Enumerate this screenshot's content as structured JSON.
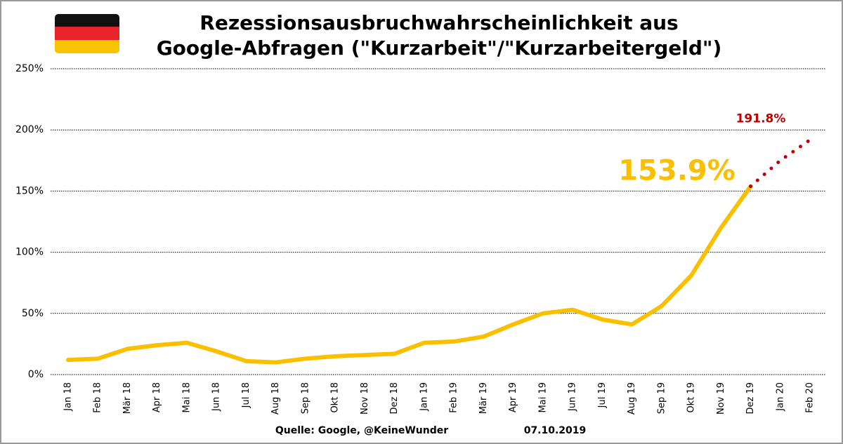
{
  "chart_data": {
    "type": "line",
    "title": [
      "Rezessionsausbruchwahrscheinlichkeit aus",
      "Google-Abfragen (\"Kurzarbeit\"/\"Kurzarbeitergeld\")"
    ],
    "categories": [
      "Jan 18",
      "Feb 18",
      "Mär 18",
      "Apr 18",
      "Mai 18",
      "Jun 18",
      "Jul 18",
      "Aug 18",
      "Sep 18",
      "Okt 18",
      "Nov 18",
      "Dez 18",
      "Jan 19",
      "Feb 19",
      "Mär 19",
      "Apr 19",
      "Mai 19",
      "Jun 19",
      "Jul 19",
      "Aug 19",
      "Sep 19",
      "Okt 19",
      "Nov 19",
      "Dez 19",
      "Jan 20",
      "Feb 20"
    ],
    "series": [
      {
        "color": "#fac000",
        "style": "solid",
        "values": [
          12,
          13,
          21,
          24,
          26,
          19,
          11,
          10,
          13,
          15,
          16,
          17,
          26,
          27,
          31,
          41,
          50,
          53,
          45,
          41,
          56,
          81,
          120,
          153.9,
          null,
          null
        ],
        "value_labels": [
          null,
          null,
          null,
          null,
          null,
          null,
          null,
          null,
          null,
          null,
          null,
          null,
          null,
          null,
          null,
          null,
          null,
          null,
          null,
          null,
          null,
          null,
          null,
          "153.9%",
          null,
          null
        ]
      },
      {
        "color": "#c00000",
        "style": "dotted",
        "values": [
          null,
          null,
          null,
          null,
          null,
          null,
          null,
          null,
          null,
          null,
          null,
          null,
          null,
          null,
          null,
          null,
          null,
          null,
          null,
          null,
          null,
          null,
          null,
          153.9,
          175,
          191.8
        ],
        "value_labels": [
          null,
          null,
          null,
          null,
          null,
          null,
          null,
          null,
          null,
          null,
          null,
          null,
          null,
          null,
          null,
          null,
          null,
          null,
          null,
          null,
          null,
          null,
          null,
          null,
          null,
          "191.8%"
        ]
      }
    ],
    "ylim": [
      0,
      250
    ],
    "yticks": [
      {
        "value": 0,
        "label": "0%"
      },
      {
        "value": 50,
        "label": "50%"
      },
      {
        "value": 100,
        "label": "100%"
      },
      {
        "value": 150,
        "label": "150%"
      },
      {
        "value": 200,
        "label": "200%"
      },
      {
        "value": 250,
        "label": "250%"
      }
    ],
    "grid": true,
    "footer": [
      "Quelle: Google, @KeineWunder",
      "07.10.2019"
    ]
  }
}
